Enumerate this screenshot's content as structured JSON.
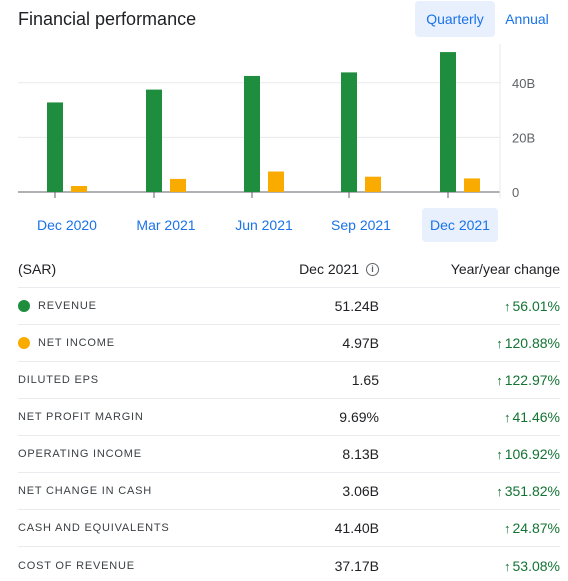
{
  "header": {
    "title": "Financial performance",
    "toggle_quarterly": "Quarterly",
    "toggle_annual": "Annual"
  },
  "colors": {
    "revenue": "#1e8e3e",
    "net_income": "#f9ab00",
    "accent": "#1a73e8",
    "positive": "#137333"
  },
  "chart_data": {
    "type": "bar",
    "categories": [
      "Dec 2020",
      "Mar 2021",
      "Jun 2021",
      "Sep 2021",
      "Dec 2021"
    ],
    "series": [
      {
        "name": "Revenue",
        "values": [
          32.8,
          37.5,
          42.5,
          43.8,
          51.24
        ]
      },
      {
        "name": "Net income",
        "values": [
          2.2,
          4.8,
          7.5,
          5.6,
          4.97
        ]
      }
    ],
    "yticks": [
      "0",
      "20B",
      "40B"
    ],
    "ytick_values": [
      0,
      20,
      40
    ],
    "ylim": [
      0,
      55
    ],
    "selected": "Dec 2021"
  },
  "table": {
    "currency": "(SAR)",
    "col_period": "Dec 2021",
    "col_change": "Year/year change",
    "rows": [
      {
        "label": "REVENUE",
        "value": "51.24B",
        "change": "56.01%",
        "dot": "revenue"
      },
      {
        "label": "NET INCOME",
        "value": "4.97B",
        "change": "120.88%",
        "dot": "net_income"
      },
      {
        "label": "DILUTED EPS",
        "value": "1.65",
        "change": "122.97%"
      },
      {
        "label": "NET PROFIT MARGIN",
        "value": "9.69%",
        "change": "41.46%"
      },
      {
        "label": "OPERATING INCOME",
        "value": "8.13B",
        "change": "106.92%"
      },
      {
        "label": "NET CHANGE IN CASH",
        "value": "3.06B",
        "change": "351.82%"
      },
      {
        "label": "CASH AND EQUIVALENTS",
        "value": "41.40B",
        "change": "24.87%"
      },
      {
        "label": "COST OF REVENUE",
        "value": "37.17B",
        "change": "53.08%"
      }
    ]
  }
}
